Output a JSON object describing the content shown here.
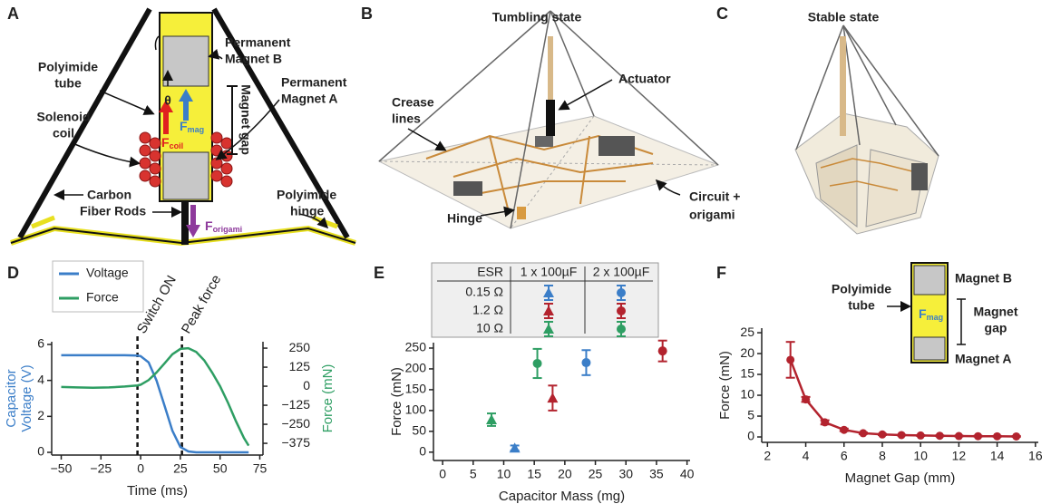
{
  "panel_labels": [
    "A",
    "B",
    "C",
    "D",
    "E",
    "F"
  ],
  "diagram_a": {
    "magnet_b": [
      "Permanent",
      "Magnet B"
    ],
    "polyimide_tube": [
      "Polyimide",
      "tube"
    ],
    "theta": "θ",
    "magnet_a": [
      "Permanent",
      "Magnet A"
    ],
    "magnet_gap": "Magnet gap",
    "solenoid_coil": [
      "Solenoid",
      "coil"
    ],
    "f_coil": {
      "symbol": "F",
      "subscript": "coil"
    },
    "f_mag": {
      "symbol": "F",
      "subscript": "mag"
    },
    "carbon_rods": [
      "Carbon",
      "Fiber Rods"
    ],
    "polyimide_hinge": [
      "Polyimide",
      "hinge"
    ],
    "f_origami": {
      "symbol": "F",
      "subscript": "origami"
    }
  },
  "diagram_b": {
    "title": "Tumbling state",
    "actuator": "Actuator",
    "crease_lines": [
      "Crease",
      "lines"
    ],
    "hinge": "Hinge",
    "circuit": [
      "Circuit +",
      "origami"
    ]
  },
  "diagram_c": {
    "title": "Stable state"
  },
  "chart_data": [
    {
      "type": "line",
      "x_label": "Time (ms)",
      "y_label": [
        "Capacitor",
        "Voltage (V)"
      ],
      "y2_label": "Force (mN)",
      "xlim": [
        -56,
        77
      ],
      "xticks": [
        {
          "value": -50,
          "label": "−50"
        },
        {
          "value": -25,
          "label": "−25"
        },
        0,
        25,
        50,
        75
      ],
      "ylim": [
        -0.15,
        6.15
      ],
      "yticks": [
        0,
        2,
        4,
        6
      ],
      "y2lim": [
        -452,
        292
      ],
      "y2ticks": [
        250,
        125,
        0,
        {
          "value": -125,
          "label": "−125"
        },
        {
          "value": -250,
          "label": "−250"
        },
        {
          "value": -375,
          "label": "−375"
        }
      ],
      "x": [
        -50,
        -40,
        -30,
        -20,
        -10,
        -2,
        0,
        5,
        10,
        15,
        20,
        25,
        30,
        35,
        40,
        45,
        50,
        55,
        60,
        65,
        68
      ],
      "series": [
        {
          "name": "Voltage",
          "color": "#3b7ec8",
          "values": [
            5.4,
            5.4,
            5.4,
            5.4,
            5.4,
            5.38,
            5.35,
            5.0,
            4.0,
            2.6,
            1.2,
            0.3,
            0.05,
            0,
            0,
            0,
            0,
            0,
            0,
            0,
            0
          ]
        },
        {
          "name": "Force",
          "color": "#2e9e63",
          "axis": "y2",
          "values": [
            -5,
            -8,
            -10,
            -8,
            -2,
            5,
            10,
            40,
            90,
            150,
            210,
            245,
            250,
            225,
            170,
            90,
            0,
            -110,
            -230,
            -340,
            -390
          ]
        }
      ],
      "annotations": [
        {
          "x": -2,
          "label": "Switch ON"
        },
        {
          "x": 26,
          "label": "Peak force"
        }
      ]
    },
    {
      "type": "scatter",
      "x_label": "Capacitor Mass (mg)",
      "y_label": "Force (mN)",
      "xlim": [
        -1.5,
        40.5
      ],
      "xticks": [
        0,
        5,
        10,
        15,
        20,
        25,
        30,
        35,
        40
      ],
      "ylim": [
        -20,
        263
      ],
      "yticks": [
        0,
        50,
        100,
        150,
        200,
        250
      ],
      "legend_table": {
        "header": [
          "ESR",
          "1 x 100µF",
          "2 x 100µF"
        ],
        "rows": [
          "0.15 Ω",
          "1.2  Ω",
          "10 Ω"
        ]
      },
      "series": [
        {
          "color": "#3b7ec8",
          "marker": "triangle",
          "x": [
            11.8
          ],
          "values": [
            10
          ],
          "errors": [
            6
          ]
        },
        {
          "color": "#3b7ec8",
          "marker": "circle",
          "x": [
            23.5
          ],
          "values": [
            215
          ],
          "errors": [
            30
          ]
        },
        {
          "color": "#b3232e",
          "marker": "triangle",
          "x": [
            18
          ],
          "values": [
            130
          ],
          "errors": [
            30
          ]
        },
        {
          "color": "#b3232e",
          "marker": "circle",
          "x": [
            36
          ],
          "values": [
            243
          ],
          "errors": [
            25
          ]
        },
        {
          "color": "#2e9e63",
          "marker": "triangle",
          "x": [
            8
          ],
          "values": [
            78
          ],
          "errors": [
            15
          ]
        },
        {
          "color": "#2e9e63",
          "marker": "circle",
          "x": [
            15.5
          ],
          "values": [
            213
          ],
          "errors": [
            35
          ]
        }
      ]
    },
    {
      "type": "line",
      "x_label": "Magnet Gap (mm)",
      "y_label": "Force (mN)",
      "xlim": [
        1.7,
        16.15
      ],
      "xticks": [
        2,
        4,
        6,
        8,
        10,
        12,
        14,
        16
      ],
      "ylim": [
        -1.3,
        26.1
      ],
      "yticks": [
        0,
        5,
        10,
        15,
        20,
        25
      ],
      "x": [
        3.2,
        4,
        5,
        6,
        7,
        8,
        9,
        10,
        11,
        12,
        13,
        14,
        15
      ],
      "series": [
        {
          "color": "#b3232e",
          "values": [
            18.5,
            9,
            3.5,
            1.7,
            0.9,
            0.6,
            0.45,
            0.35,
            0.28,
            0.22,
            0.18,
            0.15,
            0.12
          ],
          "errors": [
            4.3,
            0.6,
            0.5,
            0.3,
            0.2,
            0.15,
            0.1,
            0.1,
            0.1,
            0.1,
            0.1,
            0.1,
            0.1
          ]
        }
      ],
      "inset": {
        "magnet_b": "Magnet B",
        "polyimide_tube": [
          "Polyimide",
          "tube"
        ],
        "f_mag": {
          "symbol": "F",
          "subscript": "mag"
        },
        "magnet_gap": [
          "Magnet",
          "gap"
        ],
        "magnet_a": "Magnet A"
      }
    }
  ]
}
